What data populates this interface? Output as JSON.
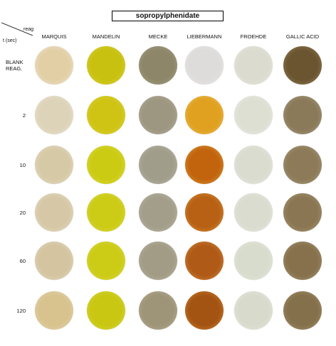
{
  "title": "sopropylphenidate",
  "corner": {
    "reagent_label": "reag",
    "time_label": "t (sec)"
  },
  "columns": [
    "MARQUIS",
    "MANDELIN",
    "MECKE",
    "LIEBERMANN",
    "FROEHDE",
    "GALLIC ACID"
  ],
  "rows": [
    {
      "label": "BLANK\nREAG.",
      "colors": [
        {
          "c": "#e2cfa6",
          "e": "#efe6d4"
        },
        {
          "c": "#c9c110",
          "e": "#d9d33a"
        },
        {
          "c": "#8d8668",
          "e": "#a9a38c"
        },
        {
          "c": "#dddcda",
          "e": "#e8e7e5"
        },
        {
          "c": "#dcdbcf",
          "e": "#e8e7de"
        },
        {
          "c": "#6b5530",
          "e": "#9a8762"
        }
      ]
    },
    {
      "label": "2",
      "colors": [
        {
          "c": "#ddd3b8",
          "e": "#eae4d4"
        },
        {
          "c": "#cfc414",
          "e": "#dcd642"
        },
        {
          "c": "#9d9680",
          "e": "#b8b3a2"
        },
        {
          "c": "#e0a020",
          "e": "#eec25a"
        },
        {
          "c": "#dedfd3",
          "e": "#ebebe3"
        },
        {
          "c": "#8a7a5a",
          "e": "#aea285"
        }
      ]
    },
    {
      "label": "10",
      "colors": [
        {
          "c": "#d6c9a6",
          "e": "#e6dfcb"
        },
        {
          "c": "#cccb14",
          "e": "#dddc48"
        },
        {
          "c": "#a19d8b",
          "e": "#bdb9ab"
        },
        {
          "c": "#c2640e",
          "e": "#e0a03c"
        },
        {
          "c": "#dadcd0",
          "e": "#e8e9e0"
        },
        {
          "c": "#8c7a58",
          "e": "#b0a384"
        }
      ]
    },
    {
      "label": "20",
      "colors": [
        {
          "c": "#d6c8a6",
          "e": "#e6dfcb"
        },
        {
          "c": "#cccb16",
          "e": "#dddc4a"
        },
        {
          "c": "#a39e8a",
          "e": "#bebaaa"
        },
        {
          "c": "#b86014",
          "e": "#dc9a3e"
        },
        {
          "c": "#dadcd0",
          "e": "#e8e9e0"
        },
        {
          "c": "#8a7652",
          "e": "#ae9f7e"
        }
      ]
    },
    {
      "label": "60",
      "colors": [
        {
          "c": "#d4c4a0",
          "e": "#e4dcc6"
        },
        {
          "c": "#cccb16",
          "e": "#dddc4a"
        },
        {
          "c": "#a29c86",
          "e": "#bdb8a6"
        },
        {
          "c": "#b05a18",
          "e": "#d8923e"
        },
        {
          "c": "#d8dccd",
          "e": "#e6e9dd"
        },
        {
          "c": "#86714c",
          "e": "#ab9b79"
        }
      ]
    },
    {
      "label": "120",
      "colors": [
        {
          "c": "#d8c28e",
          "e": "#e6d9b6"
        },
        {
          "c": "#c9c712",
          "e": "#dad944"
        },
        {
          "c": "#9e9478",
          "e": "#bab399"
        },
        {
          "c": "#a45412",
          "e": "#d28a34"
        },
        {
          "c": "#d8dbcc",
          "e": "#e6e9dc"
        },
        {
          "c": "#84704a",
          "e": "#a99977"
        }
      ]
    }
  ]
}
